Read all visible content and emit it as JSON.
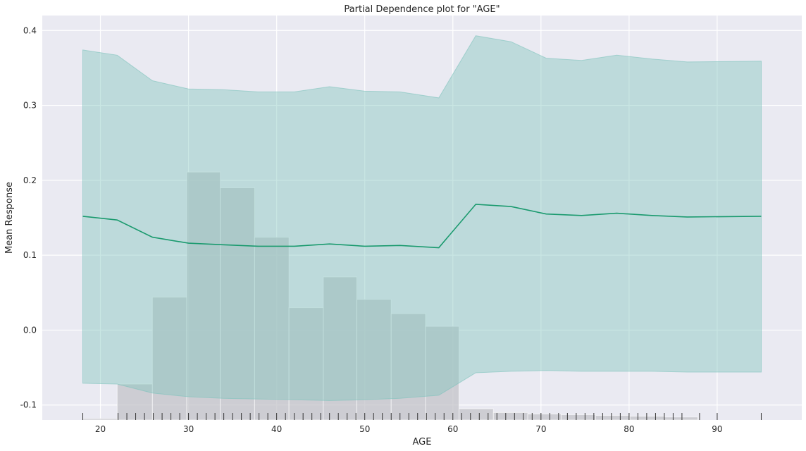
{
  "chart_data": {
    "type": "line",
    "title": "Partial Dependence plot for \"AGE\"",
    "xlabel": "AGE",
    "ylabel": "Mean Response",
    "xlim": [
      13.4,
      99.6
    ],
    "ylim": [
      -0.12,
      0.42
    ],
    "xticks": [
      20,
      30,
      40,
      50,
      60,
      70,
      80,
      90
    ],
    "yticks": [
      -0.1,
      0.0,
      0.1,
      0.2,
      0.3,
      0.4
    ],
    "grid": true,
    "background_color": "#eaeaf2",
    "series": [
      {
        "type": "line",
        "color": "#1a9a6e",
        "x": [
          18,
          21.9,
          25.9,
          30,
          33.9,
          37.9,
          42,
          46,
          50,
          54,
          58.4,
          62.6,
          66.6,
          70.6,
          74.6,
          78.6,
          82.6,
          86.6,
          95
        ],
        "y": [
          0.152,
          0.147,
          0.124,
          0.116,
          0.114,
          0.112,
          0.112,
          0.115,
          0.112,
          0.113,
          0.11,
          0.168,
          0.165,
          0.155,
          0.153,
          0.156,
          0.153,
          0.151,
          0.152
        ]
      }
    ],
    "confidence_band": {
      "color": "#7fc3bd",
      "x": [
        18,
        21.9,
        25.9,
        30,
        33.9,
        37.9,
        42,
        46,
        50,
        54,
        58.4,
        62.6,
        66.6,
        70.6,
        74.6,
        78.6,
        82.6,
        86.6,
        95
      ],
      "upper": [
        0.374,
        0.367,
        0.333,
        0.322,
        0.321,
        0.318,
        0.318,
        0.325,
        0.319,
        0.318,
        0.31,
        0.393,
        0.385,
        0.363,
        0.36,
        0.367,
        0.362,
        0.358,
        0.359
      ],
      "lower": [
        -0.071,
        -0.072,
        -0.084,
        -0.089,
        -0.091,
        -0.092,
        -0.093,
        -0.094,
        -0.093,
        -0.091,
        -0.087,
        -0.057,
        -0.055,
        -0.054,
        -0.055,
        -0.055,
        -0.055,
        -0.056,
        -0.056
      ]
    },
    "histogram": {
      "color": "#c3c3c8",
      "bins": [
        {
          "x0": 18,
          "x1": 21.9,
          "top": -0.118
        },
        {
          "x0": 21.9,
          "x1": 25.9,
          "top": -0.072
        },
        {
          "x0": 25.9,
          "x1": 29.8,
          "top": 0.044
        },
        {
          "x0": 29.8,
          "x1": 33.6,
          "top": 0.211
        },
        {
          "x0": 33.6,
          "x1": 37.5,
          "top": 0.19
        },
        {
          "x0": 37.5,
          "x1": 41.4,
          "top": 0.124
        },
        {
          "x0": 41.4,
          "x1": 45.3,
          "top": 0.03
        },
        {
          "x0": 45.3,
          "x1": 49.1,
          "top": 0.071
        },
        {
          "x0": 49.1,
          "x1": 53.0,
          "top": 0.041
        },
        {
          "x0": 53.0,
          "x1": 56.9,
          "top": 0.022
        },
        {
          "x0": 56.9,
          "x1": 60.7,
          "top": 0.005
        },
        {
          "x0": 60.7,
          "x1": 64.6,
          "top": -0.105
        },
        {
          "x0": 64.6,
          "x1": 68.5,
          "top": -0.11
        },
        {
          "x0": 68.5,
          "x1": 72.3,
          "top": -0.112
        },
        {
          "x0": 72.3,
          "x1": 76.2,
          "top": -0.113
        },
        {
          "x0": 76.2,
          "x1": 80.1,
          "top": -0.114
        },
        {
          "x0": 80.1,
          "x1": 84.0,
          "top": -0.115
        },
        {
          "x0": 84.0,
          "x1": 87.8,
          "top": -0.116
        }
      ]
    },
    "rug": {
      "color": "#333333",
      "values": [
        18,
        22,
        23,
        24,
        25,
        26,
        27,
        28,
        29,
        30,
        31,
        32,
        33,
        34,
        35,
        36,
        37,
        38,
        39,
        40,
        41,
        42,
        43,
        44,
        45,
        46,
        47,
        48,
        49,
        50,
        51,
        52,
        53,
        54,
        55,
        56,
        57,
        58,
        59,
        60,
        61,
        62,
        63,
        64,
        65,
        66,
        67,
        68,
        69,
        70,
        71,
        72,
        73,
        74,
        75,
        76,
        77,
        78,
        79,
        80,
        81,
        82,
        83,
        84,
        85,
        86,
        88,
        90,
        95
      ]
    }
  }
}
